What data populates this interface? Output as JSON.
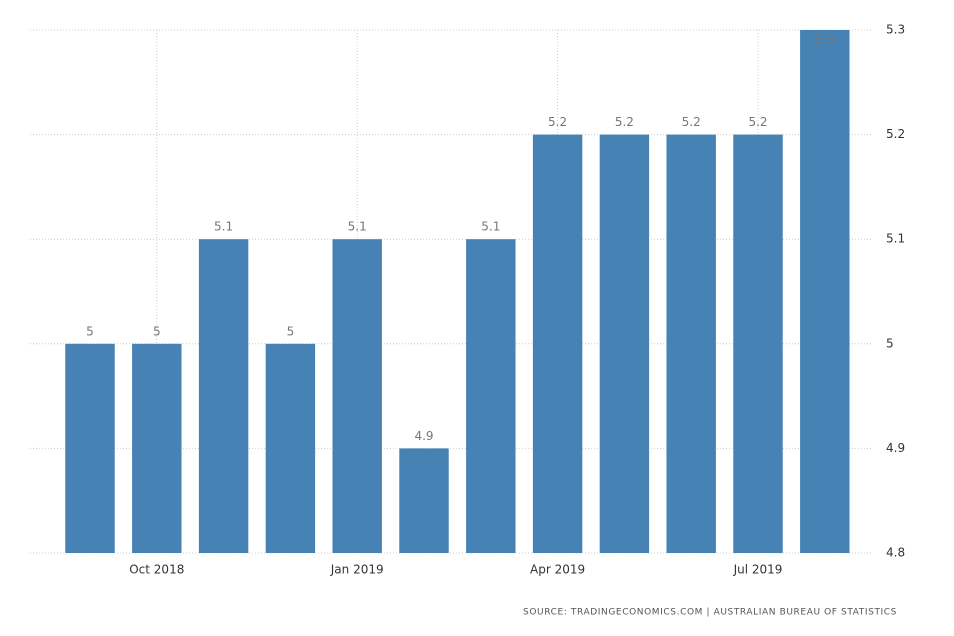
{
  "chart_data": {
    "type": "bar",
    "categories": [
      null,
      "Oct 2018",
      null,
      null,
      "Jan 2019",
      null,
      null,
      "Apr 2019",
      null,
      null,
      "Jul 2019",
      null
    ],
    "values": [
      5,
      5,
      5.1,
      5,
      5.1,
      4.9,
      5.1,
      5.2,
      5.2,
      5.2,
      5.2,
      5.3
    ],
    "color": "#4682b4",
    "ylim": [
      4.8,
      5.3
    ],
    "yticks": [
      4.8,
      4.9,
      5,
      5.1,
      5.2,
      5.3
    ],
    "grid": true,
    "y_axis_side": "right",
    "source": "SOURCE: TRADINGECONOMICS.COM | AUSTRALIAN BUREAU OF STATISTICS"
  }
}
